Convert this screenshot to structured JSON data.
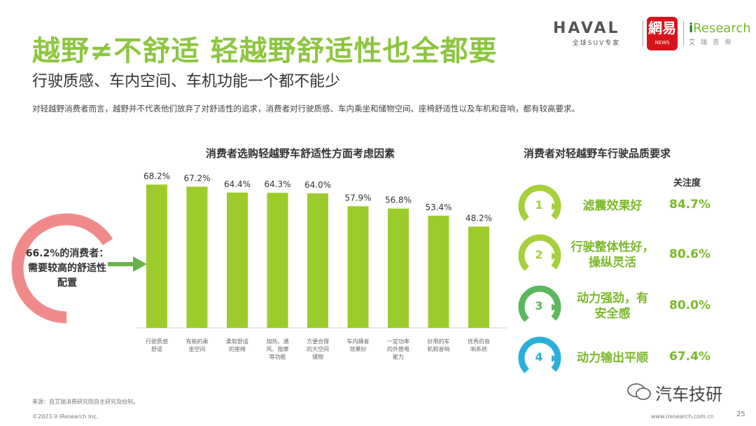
{
  "header": {
    "title": "越野≠不舒适  轻越野舒适性也全都要",
    "subtitle": "行驶质感、车内空间、车机功能一个都不能少",
    "description": "对轻越野消费者而言，越野并不代表他们放弃了对舒适性的追求，消费者对行驶质感、车内乘坐和储物空间、座椅舒适性以及车机和音响，都有较高要求。"
  },
  "logos": {
    "haval": "HAVAL",
    "haval_tagline": "全球SUV专家",
    "netease": "網易",
    "netease_sub": "NEWS",
    "iresearch_i": "i",
    "iresearch": "Research",
    "iresearch_tagline": "艾瑞咨询"
  },
  "callout": {
    "text": "66.2%的消费者：需要较高的舒适性配置",
    "ring_color": "#f08a8a",
    "arrow_color": "#6ab04c"
  },
  "right_panel": {
    "title": "消费者对轻越野车行驶品质要求",
    "column_header": "关注度",
    "items": [
      {
        "rank": "1",
        "label": "滤震效果好",
        "value": "84.7%",
        "color": "#a6cf3b"
      },
      {
        "rank": "2",
        "label": "行驶整体性好，操纵灵活",
        "value": "80.6%",
        "color": "#a6cf3b"
      },
      {
        "rank": "3",
        "label": "动力强劲，有安全感",
        "value": "80.0%",
        "color": "#5cb85c"
      },
      {
        "rank": "4",
        "label": "动力输出平顺",
        "value": "67.4%",
        "color": "#2ab0d8"
      }
    ]
  },
  "footer": {
    "source": "来源：自艾瑞消费研究院自主研究及绘制。",
    "copyright": "©2023.9 iResearch Inc.",
    "url": "www.iresearch.com.cn",
    "page": "25",
    "watermark": "汽车技研"
  },
  "colors": {
    "accent": "#8cc63f",
    "bar": "#9ccc2b"
  },
  "chart_data": {
    "type": "bar",
    "title": "消费者选购轻越野车舒适性方面考虑因素",
    "categories": [
      "行驶质感舒适",
      "充裕的乘坐空间",
      "柔软舒适的座椅",
      "加热、通风、按摩等功能",
      "方便合理的大空间储物",
      "车内隔音效果好",
      "一定功率的外放电能力",
      "好用的车机和音响",
      "优秀的音响系统"
    ],
    "values": [
      68.2,
      67.2,
      64.4,
      64.3,
      64.0,
      57.9,
      56.8,
      53.4,
      48.2
    ],
    "value_labels": [
      "68.2%",
      "67.2%",
      "64.4%",
      "64.3%",
      "64.0%",
      "57.9%",
      "56.8%",
      "53.4%",
      "48.2%"
    ],
    "ylim": [
      0,
      70
    ],
    "xlabel": "",
    "ylabel": ""
  }
}
